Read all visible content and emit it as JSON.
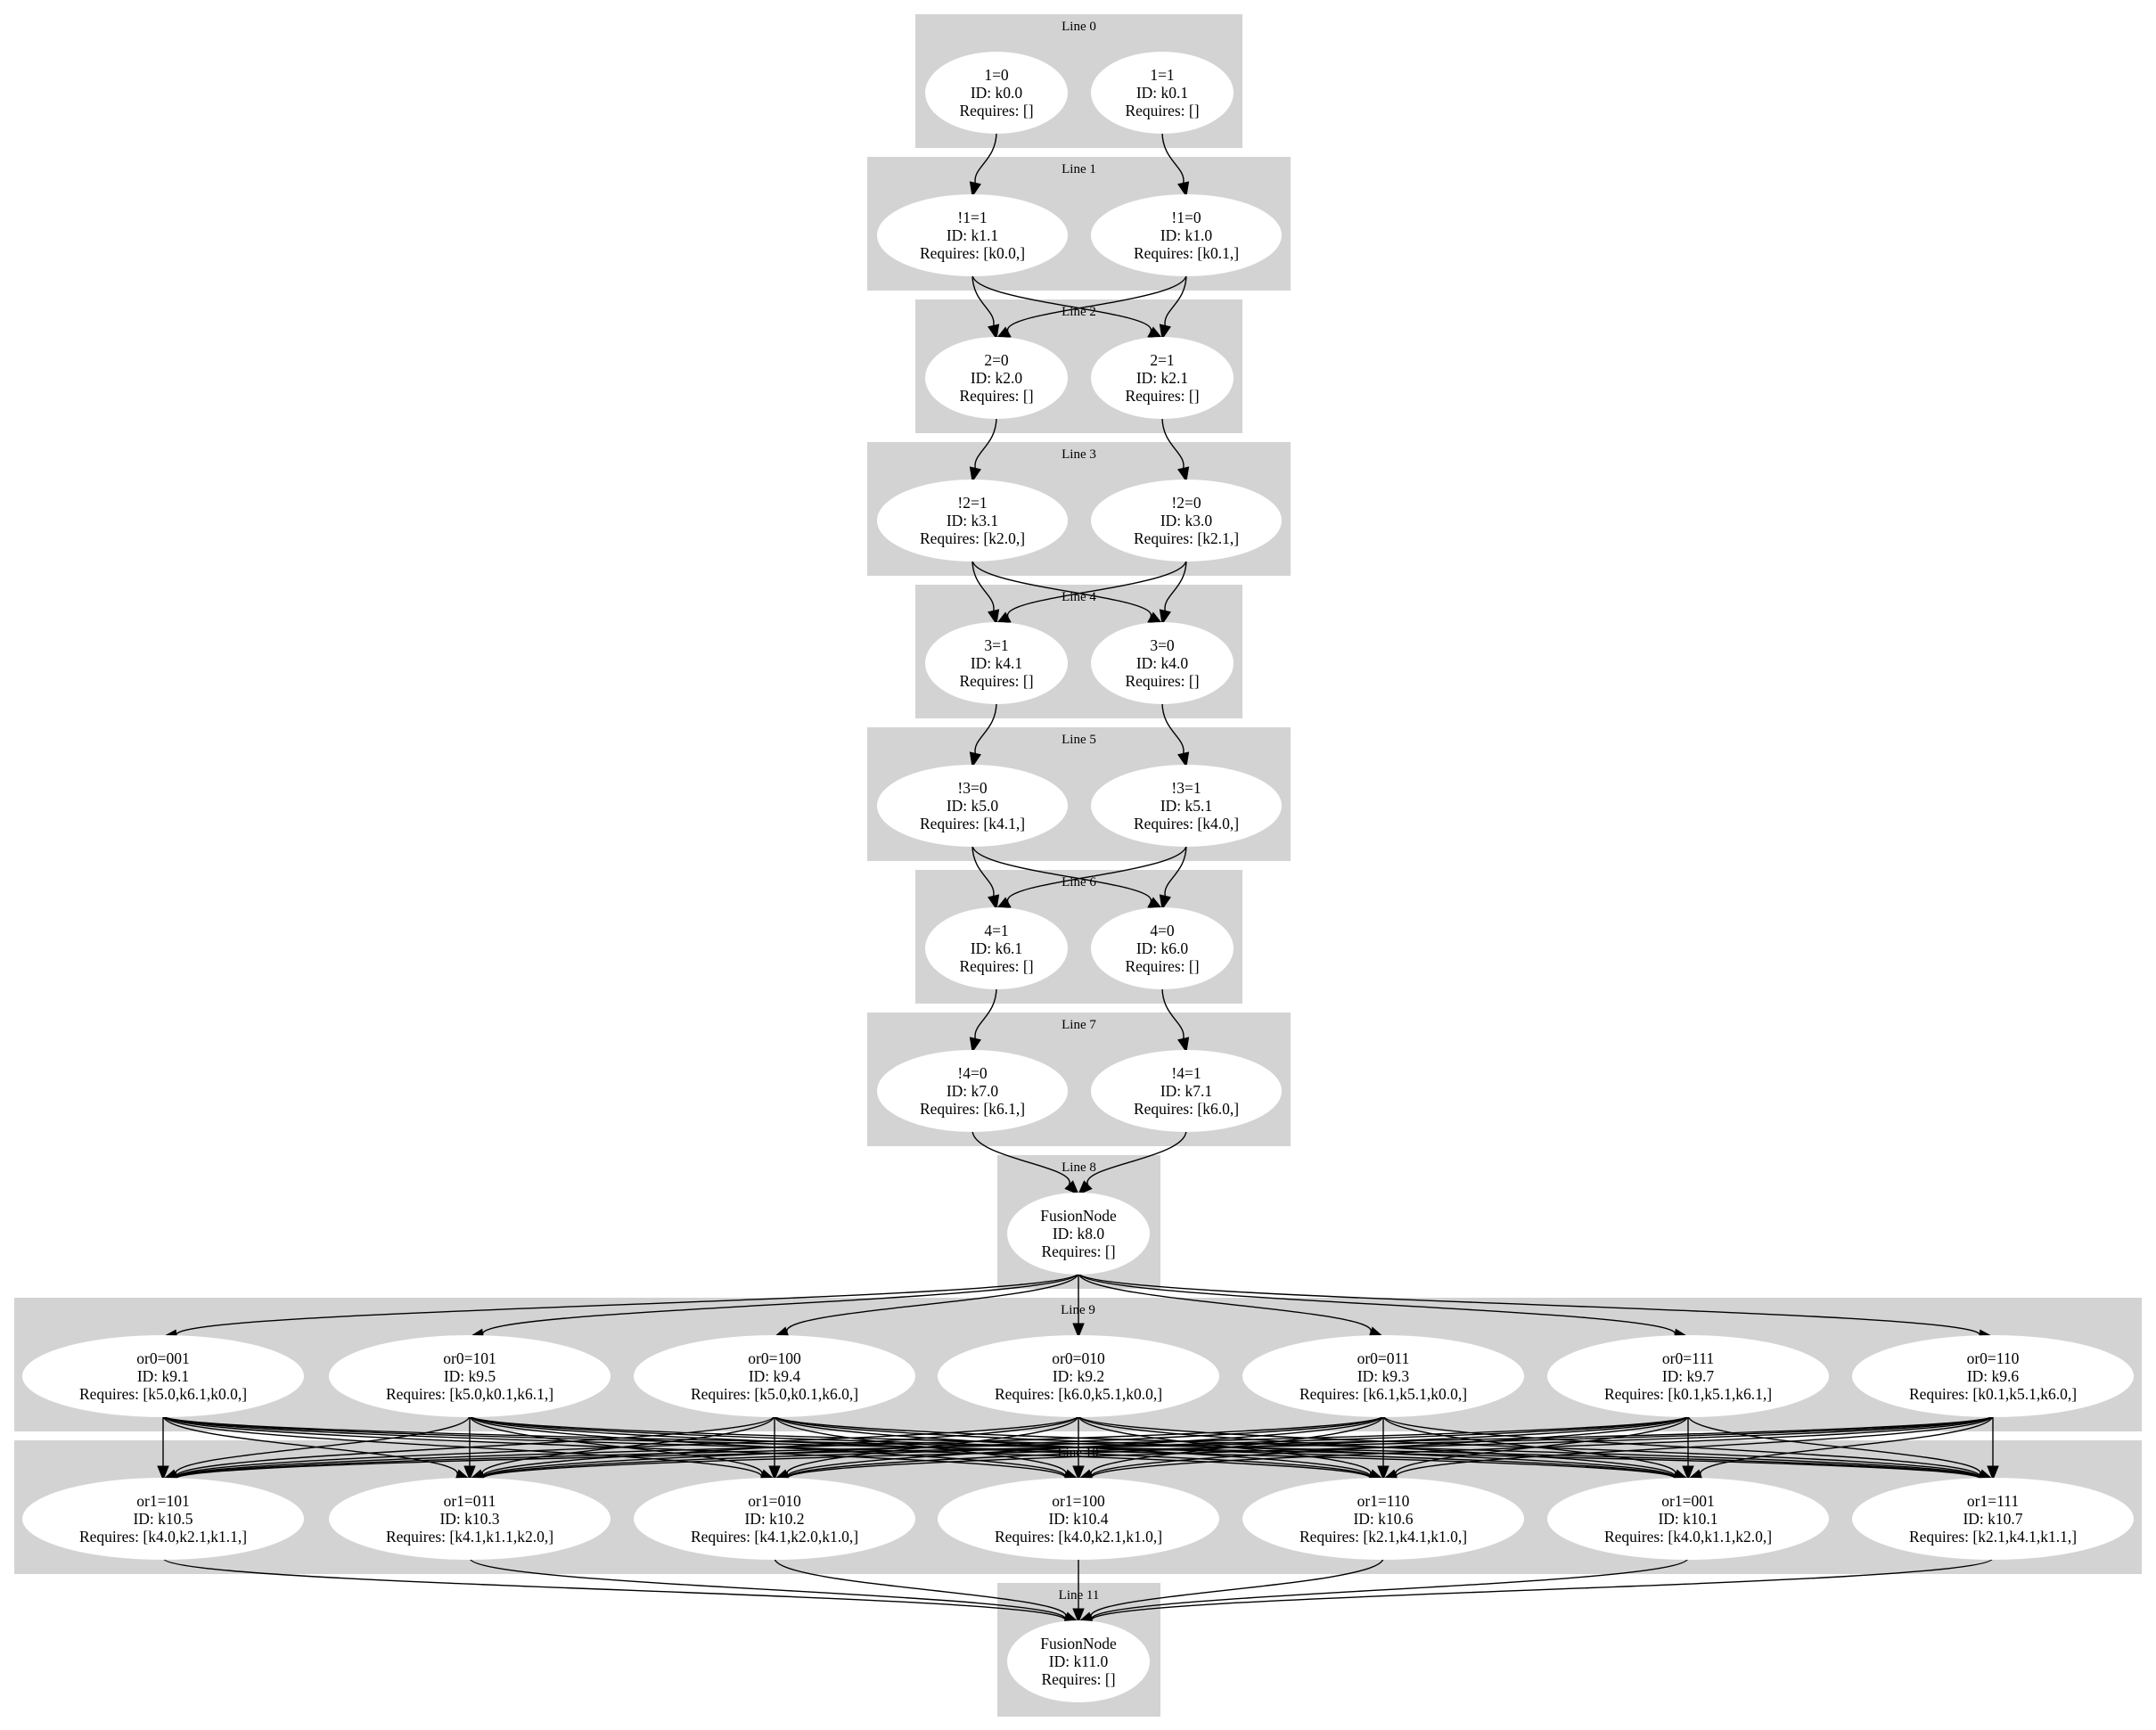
{
  "clusters": [
    {
      "id": "c0",
      "label": "Line 0"
    },
    {
      "id": "c1",
      "label": "Line 1"
    },
    {
      "id": "c2",
      "label": "Line 2"
    },
    {
      "id": "c3",
      "label": "Line 3"
    },
    {
      "id": "c4",
      "label": "Line 4"
    },
    {
      "id": "c5",
      "label": "Line 5"
    },
    {
      "id": "c6",
      "label": "Line 6"
    },
    {
      "id": "c7",
      "label": "Line 7"
    },
    {
      "id": "c8",
      "label": "Line 8"
    },
    {
      "id": "c9",
      "label": "Line 9"
    },
    {
      "id": "c10",
      "label": "Line 10"
    },
    {
      "id": "c11",
      "label": "Line 11"
    }
  ],
  "nodes": [
    {
      "id": "k0.0",
      "lines": [
        "1=0",
        "ID: k0.0",
        "Requires: []"
      ]
    },
    {
      "id": "k0.1",
      "lines": [
        "1=1",
        "ID: k0.1",
        "Requires: []"
      ]
    },
    {
      "id": "k1.1",
      "lines": [
        "!1=1",
        "ID: k1.1",
        "Requires: [k0.0,]"
      ]
    },
    {
      "id": "k1.0",
      "lines": [
        "!1=0",
        "ID: k1.0",
        "Requires: [k0.1,]"
      ]
    },
    {
      "id": "k2.0",
      "lines": [
        "2=0",
        "ID: k2.0",
        "Requires: []"
      ]
    },
    {
      "id": "k2.1",
      "lines": [
        "2=1",
        "ID: k2.1",
        "Requires: []"
      ]
    },
    {
      "id": "k3.1",
      "lines": [
        "!2=1",
        "ID: k3.1",
        "Requires: [k2.0,]"
      ]
    },
    {
      "id": "k3.0",
      "lines": [
        "!2=0",
        "ID: k3.0",
        "Requires: [k2.1,]"
      ]
    },
    {
      "id": "k4.1",
      "lines": [
        "3=1",
        "ID: k4.1",
        "Requires: []"
      ]
    },
    {
      "id": "k4.0",
      "lines": [
        "3=0",
        "ID: k4.0",
        "Requires: []"
      ]
    },
    {
      "id": "k5.0",
      "lines": [
        "!3=0",
        "ID: k5.0",
        "Requires: [k4.1,]"
      ]
    },
    {
      "id": "k5.1",
      "lines": [
        "!3=1",
        "ID: k5.1",
        "Requires: [k4.0,]"
      ]
    },
    {
      "id": "k6.1",
      "lines": [
        "4=1",
        "ID: k6.1",
        "Requires: []"
      ]
    },
    {
      "id": "k6.0",
      "lines": [
        "4=0",
        "ID: k6.0",
        "Requires: []"
      ]
    },
    {
      "id": "k7.0",
      "lines": [
        "!4=0",
        "ID: k7.0",
        "Requires: [k6.1,]"
      ]
    },
    {
      "id": "k7.1",
      "lines": [
        "!4=1",
        "ID: k7.1",
        "Requires: [k6.0,]"
      ]
    },
    {
      "id": "k8.0",
      "lines": [
        "FusionNode",
        "ID: k8.0",
        "Requires: []"
      ]
    },
    {
      "id": "k9.1",
      "lines": [
        "or0=001",
        "ID: k9.1",
        "Requires: [k5.0,k6.1,k0.0,]"
      ]
    },
    {
      "id": "k9.5",
      "lines": [
        "or0=101",
        "ID: k9.5",
        "Requires: [k5.0,k0.1,k6.1,]"
      ]
    },
    {
      "id": "k9.4",
      "lines": [
        "or0=100",
        "ID: k9.4",
        "Requires: [k5.0,k0.1,k6.0,]"
      ]
    },
    {
      "id": "k9.2",
      "lines": [
        "or0=010",
        "ID: k9.2",
        "Requires: [k6.0,k5.1,k0.0,]"
      ]
    },
    {
      "id": "k9.3",
      "lines": [
        "or0=011",
        "ID: k9.3",
        "Requires: [k6.1,k5.1,k0.0,]"
      ]
    },
    {
      "id": "k9.7",
      "lines": [
        "or0=111",
        "ID: k9.7",
        "Requires: [k0.1,k5.1,k6.1,]"
      ]
    },
    {
      "id": "k9.6",
      "lines": [
        "or0=110",
        "ID: k9.6",
        "Requires: [k0.1,k5.1,k6.0,]"
      ]
    },
    {
      "id": "k10.5",
      "lines": [
        "or1=101",
        "ID: k10.5",
        "Requires: [k4.0,k2.1,k1.1,]"
      ]
    },
    {
      "id": "k10.3",
      "lines": [
        "or1=011",
        "ID: k10.3",
        "Requires: [k4.1,k1.1,k2.0,]"
      ]
    },
    {
      "id": "k10.2",
      "lines": [
        "or1=010",
        "ID: k10.2",
        "Requires: [k4.1,k2.0,k1.0,]"
      ]
    },
    {
      "id": "k10.4",
      "lines": [
        "or1=100",
        "ID: k10.4",
        "Requires: [k4.0,k2.1,k1.0,]"
      ]
    },
    {
      "id": "k10.6",
      "lines": [
        "or1=110",
        "ID: k10.6",
        "Requires: [k2.1,k4.1,k1.0,]"
      ]
    },
    {
      "id": "k10.1",
      "lines": [
        "or1=001",
        "ID: k10.1",
        "Requires: [k4.0,k1.1,k2.0,]"
      ]
    },
    {
      "id": "k10.7",
      "lines": [
        "or1=111",
        "ID: k10.7",
        "Requires: [k2.1,k4.1,k1.1,]"
      ]
    },
    {
      "id": "k11.0",
      "lines": [
        "FusionNode",
        "ID: k11.0",
        "Requires: []"
      ]
    }
  ],
  "edges": [
    [
      "k0.0",
      "k1.1"
    ],
    [
      "k0.1",
      "k1.0"
    ],
    [
      "k1.1",
      "k2.0"
    ],
    [
      "k1.1",
      "k2.1"
    ],
    [
      "k1.0",
      "k2.0"
    ],
    [
      "k1.0",
      "k2.1"
    ],
    [
      "k2.0",
      "k3.1"
    ],
    [
      "k2.1",
      "k3.0"
    ],
    [
      "k3.1",
      "k4.1"
    ],
    [
      "k3.1",
      "k4.0"
    ],
    [
      "k3.0",
      "k4.1"
    ],
    [
      "k3.0",
      "k4.0"
    ],
    [
      "k4.1",
      "k5.0"
    ],
    [
      "k4.0",
      "k5.1"
    ],
    [
      "k5.0",
      "k6.1"
    ],
    [
      "k5.0",
      "k6.0"
    ],
    [
      "k5.1",
      "k6.1"
    ],
    [
      "k5.1",
      "k6.0"
    ],
    [
      "k6.1",
      "k7.0"
    ],
    [
      "k6.0",
      "k7.1"
    ],
    [
      "k7.0",
      "k8.0"
    ],
    [
      "k7.1",
      "k8.0"
    ],
    [
      "k8.0",
      "k9.1"
    ],
    [
      "k8.0",
      "k9.5"
    ],
    [
      "k8.0",
      "k9.4"
    ],
    [
      "k8.0",
      "k9.2"
    ],
    [
      "k8.0",
      "k9.3"
    ],
    [
      "k8.0",
      "k9.7"
    ],
    [
      "k8.0",
      "k9.6"
    ],
    [
      "k9.1",
      "k10.5"
    ],
    [
      "k9.1",
      "k10.3"
    ],
    [
      "k9.1",
      "k10.2"
    ],
    [
      "k9.1",
      "k10.4"
    ],
    [
      "k9.1",
      "k10.6"
    ],
    [
      "k9.1",
      "k10.1"
    ],
    [
      "k9.1",
      "k10.7"
    ],
    [
      "k9.5",
      "k10.5"
    ],
    [
      "k9.5",
      "k10.3"
    ],
    [
      "k9.5",
      "k10.2"
    ],
    [
      "k9.5",
      "k10.4"
    ],
    [
      "k9.5",
      "k10.6"
    ],
    [
      "k9.5",
      "k10.1"
    ],
    [
      "k9.5",
      "k10.7"
    ],
    [
      "k9.4",
      "k10.5"
    ],
    [
      "k9.4",
      "k10.3"
    ],
    [
      "k9.4",
      "k10.2"
    ],
    [
      "k9.4",
      "k10.4"
    ],
    [
      "k9.4",
      "k10.6"
    ],
    [
      "k9.4",
      "k10.1"
    ],
    [
      "k9.4",
      "k10.7"
    ],
    [
      "k9.2",
      "k10.5"
    ],
    [
      "k9.2",
      "k10.3"
    ],
    [
      "k9.2",
      "k10.2"
    ],
    [
      "k9.2",
      "k10.4"
    ],
    [
      "k9.2",
      "k10.6"
    ],
    [
      "k9.2",
      "k10.1"
    ],
    [
      "k9.2",
      "k10.7"
    ],
    [
      "k9.3",
      "k10.5"
    ],
    [
      "k9.3",
      "k10.3"
    ],
    [
      "k9.3",
      "k10.2"
    ],
    [
      "k9.3",
      "k10.4"
    ],
    [
      "k9.3",
      "k10.6"
    ],
    [
      "k9.3",
      "k10.1"
    ],
    [
      "k9.3",
      "k10.7"
    ],
    [
      "k9.7",
      "k10.5"
    ],
    [
      "k9.7",
      "k10.3"
    ],
    [
      "k9.7",
      "k10.2"
    ],
    [
      "k9.7",
      "k10.4"
    ],
    [
      "k9.7",
      "k10.6"
    ],
    [
      "k9.7",
      "k10.1"
    ],
    [
      "k9.7",
      "k10.7"
    ],
    [
      "k9.6",
      "k10.5"
    ],
    [
      "k9.6",
      "k10.3"
    ],
    [
      "k9.6",
      "k10.2"
    ],
    [
      "k9.6",
      "k10.4"
    ],
    [
      "k9.6",
      "k10.6"
    ],
    [
      "k9.6",
      "k10.1"
    ],
    [
      "k9.6",
      "k10.7"
    ],
    [
      "k10.5",
      "k11.0"
    ],
    [
      "k10.3",
      "k11.0"
    ],
    [
      "k10.2",
      "k11.0"
    ],
    [
      "k10.4",
      "k11.0"
    ],
    [
      "k10.6",
      "k11.0"
    ],
    [
      "k10.1",
      "k11.0"
    ],
    [
      "k10.7",
      "k11.0"
    ]
  ]
}
